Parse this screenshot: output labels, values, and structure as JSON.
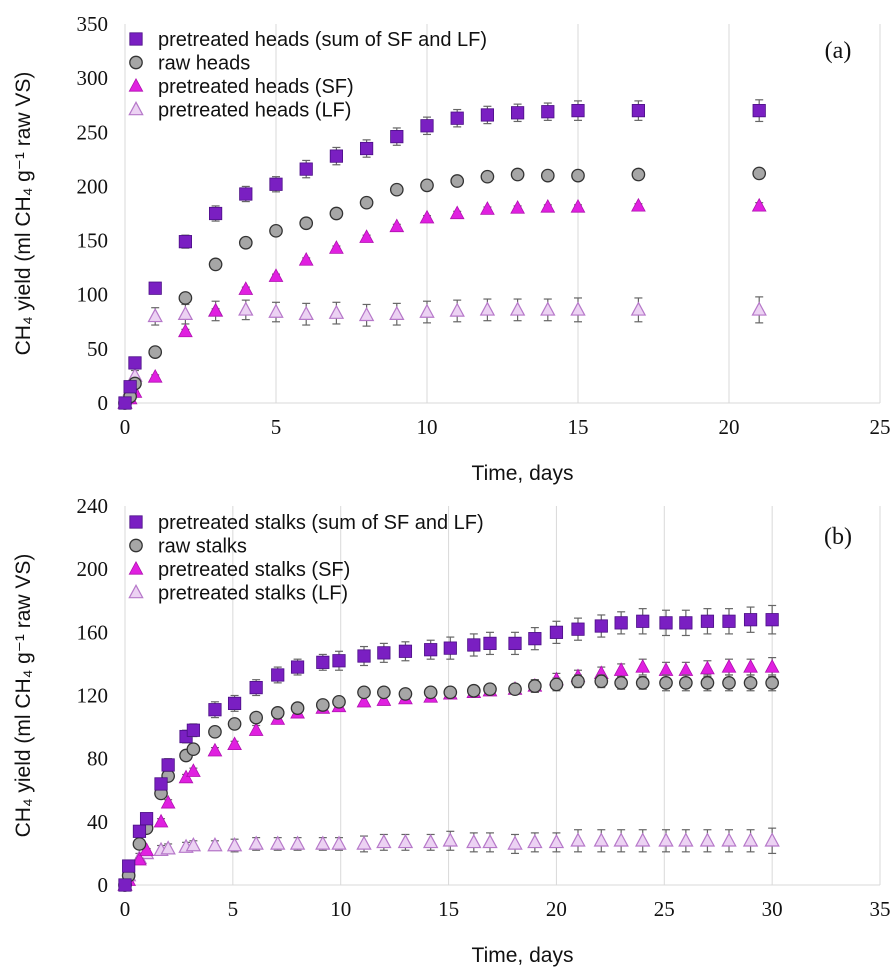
{
  "chart_data": [
    {
      "type": "scatter",
      "panel_label": "(a)",
      "xlabel": "Time, days",
      "ylabel": "CH₄ yield (ml CH₄ g⁻¹ raw VS)",
      "xlim": [
        0,
        25
      ],
      "ylim": [
        0,
        350
      ],
      "xticks": [
        "0",
        "5",
        "10",
        "15",
        "20",
        "25"
      ],
      "yticks": [
        "0",
        "50",
        "100",
        "150",
        "200",
        "250",
        "300",
        "350"
      ],
      "grid": "vertical",
      "legend_position": "top-left",
      "series": [
        {
          "name": "pretreated heads (sum of SF and LF)",
          "marker": "square",
          "color": "#7a1fc2",
          "x": [
            0,
            0.17,
            0.33,
            1,
            2,
            3,
            4,
            5,
            6,
            7,
            8,
            9,
            10,
            11,
            12,
            13,
            14,
            15,
            17,
            21
          ],
          "y": [
            0,
            15,
            37,
            106,
            149,
            175,
            193,
            202,
            216,
            228,
            235,
            246,
            256,
            263,
            266,
            268,
            269,
            270,
            270,
            270
          ],
          "err": [
            0,
            3,
            3,
            5,
            6,
            7,
            7,
            7,
            8,
            8,
            8,
            8,
            8,
            8,
            8,
            8,
            8,
            9,
            9,
            10
          ]
        },
        {
          "name": "raw heads",
          "marker": "circle",
          "color": "#a6a6a6",
          "x": [
            0,
            0.17,
            0.33,
            1,
            2,
            3,
            4,
            5,
            6,
            7,
            8,
            9,
            10,
            11,
            12,
            13,
            14,
            15,
            17,
            21
          ],
          "y": [
            0,
            6,
            18,
            47,
            97,
            128,
            148,
            159,
            166,
            175,
            185,
            197,
            201,
            205,
            209,
            211,
            210,
            210,
            211,
            212
          ],
          "err": [
            0,
            1,
            2,
            2,
            2,
            2,
            2,
            2,
            2,
            2,
            2,
            2,
            2,
            2,
            2,
            2,
            2,
            2,
            2,
            2
          ]
        },
        {
          "name": "pretreated heads (SF)",
          "marker": "triangle",
          "color": "#e020e0",
          "x": [
            0,
            0.17,
            0.33,
            1,
            2,
            3,
            4,
            5,
            6,
            7,
            8,
            9,
            10,
            11,
            12,
            13,
            14,
            15,
            17,
            21
          ],
          "y": [
            0,
            4,
            10,
            24,
            66,
            85,
            105,
            117,
            132,
            143,
            153,
            163,
            171,
            175,
            179,
            180,
            181,
            181,
            182,
            182
          ],
          "err": [
            0,
            1,
            1,
            2,
            2,
            2,
            2,
            2,
            2,
            2,
            2,
            2,
            2,
            2,
            2,
            2,
            2,
            2,
            2,
            3
          ]
        },
        {
          "name": "pretreated heads (LF)",
          "marker": "triangle-open",
          "color": "#d8a6e6",
          "x": [
            0,
            0.17,
            0.33,
            1,
            2,
            3,
            4,
            5,
            6,
            7,
            8,
            9,
            10,
            11,
            12,
            13,
            14,
            15,
            17,
            21
          ],
          "y": [
            0,
            12,
            25,
            80,
            82,
            85,
            86,
            84,
            82,
            83,
            81,
            82,
            84,
            85,
            86,
            86,
            86,
            86,
            86,
            86
          ],
          "err": [
            0,
            4,
            5,
            8,
            9,
            9,
            9,
            9,
            10,
            10,
            10,
            10,
            10,
            10,
            10,
            10,
            10,
            11,
            11,
            12
          ]
        }
      ]
    },
    {
      "type": "scatter",
      "panel_label": "(b)",
      "xlabel": "Time, days",
      "ylabel": "CH₄ yield (ml CH₄ g⁻¹ raw VS)",
      "xlim": [
        0,
        35
      ],
      "ylim": [
        0,
        240
      ],
      "xticks": [
        "0",
        "5",
        "10",
        "15",
        "20",
        "25",
        "30",
        "35"
      ],
      "yticks": [
        "0",
        "40",
        "80",
        "120",
        "160",
        "200",
        "240"
      ],
      "grid": "vertical",
      "legend_position": "top-left",
      "series": [
        {
          "name": "pretreated stalks (sum of SF and LF)",
          "marker": "square",
          "color": "#7a1fc2",
          "x": [
            0,
            0.17,
            0.67,
            1,
            1.67,
            2,
            2.83,
            3.17,
            4.17,
            5.08,
            6.08,
            7.08,
            8,
            9.17,
            9.92,
            11.08,
            12,
            13,
            14.17,
            15.08,
            16.17,
            16.92,
            18.08,
            19,
            20,
            21,
            22.08,
            23,
            24,
            25.08,
            26,
            27,
            28,
            29,
            30
          ],
          "y": [
            0,
            12,
            34,
            42,
            64,
            76,
            94,
            98,
            111,
            115,
            125,
            133,
            138,
            141,
            142,
            145,
            147,
            148,
            149,
            150,
            152,
            153,
            153,
            156,
            160,
            162,
            164,
            166,
            167,
            166,
            166,
            167,
            167,
            168,
            168
          ],
          "err": [
            0,
            2,
            3,
            3,
            3,
            4,
            4,
            4,
            5,
            5,
            5,
            5,
            5,
            5,
            6,
            6,
            6,
            6,
            6,
            7,
            7,
            7,
            7,
            7,
            7,
            7,
            7,
            7,
            8,
            8,
            8,
            8,
            8,
            8,
            9
          ]
        },
        {
          "name": "raw stalks",
          "marker": "circle",
          "color": "#a6a6a6",
          "x": [
            0,
            0.17,
            0.67,
            1,
            1.67,
            2,
            2.83,
            3.17,
            4.17,
            5.08,
            6.08,
            7.08,
            8,
            9.17,
            9.92,
            11.08,
            12,
            13,
            14.17,
            15.08,
            16.17,
            16.92,
            18.08,
            19,
            20,
            21,
            22.08,
            23,
            24,
            25.08,
            26,
            27,
            28,
            29,
            30
          ],
          "y": [
            0,
            6,
            26,
            36,
            58,
            69,
            82,
            86,
            97,
            102,
            106,
            109,
            112,
            114,
            116,
            122,
            122,
            121,
            122,
            122,
            123,
            124,
            124,
            126,
            127,
            129,
            129,
            128,
            128,
            128,
            128,
            128,
            128,
            128,
            128
          ],
          "err": [
            0,
            1,
            2,
            2,
            2,
            2,
            2,
            2,
            2,
            3,
            3,
            3,
            3,
            3,
            3,
            3,
            3,
            3,
            3,
            3,
            3,
            3,
            3,
            4,
            4,
            4,
            4,
            4,
            4,
            5,
            5,
            5,
            5,
            5,
            5
          ]
        },
        {
          "name": "pretreated stalks (SF)",
          "marker": "triangle",
          "color": "#e020e0",
          "x": [
            0,
            0.17,
            0.67,
            1,
            1.67,
            2,
            2.83,
            3.17,
            4.17,
            5.08,
            6.08,
            7.08,
            8,
            9.17,
            9.92,
            11.08,
            12,
            13,
            14.17,
            15.08,
            16.17,
            16.92,
            18.08,
            19,
            20,
            21,
            22.08,
            23,
            24,
            25.08,
            26,
            27,
            28,
            29,
            30
          ],
          "y": [
            0,
            3,
            16,
            22,
            40,
            52,
            68,
            72,
            85,
            89,
            98,
            105,
            109,
            112,
            113,
            116,
            117,
            118,
            119,
            121,
            122,
            123,
            124,
            126,
            130,
            132,
            134,
            136,
            138,
            136,
            136,
            137,
            138,
            138,
            138
          ],
          "err": [
            0,
            1,
            1,
            1,
            2,
            2,
            2,
            2,
            2,
            2,
            3,
            3,
            3,
            3,
            3,
            3,
            3,
            3,
            3,
            3,
            3,
            3,
            3,
            4,
            4,
            4,
            4,
            4,
            5,
            5,
            5,
            5,
            5,
            5,
            6
          ]
        },
        {
          "name": "pretreated stalks (LF)",
          "marker": "triangle-open",
          "color": "#d8a6e6",
          "x": [
            0,
            0.17,
            0.67,
            1,
            1.67,
            2,
            2.83,
            3.17,
            4.17,
            5.08,
            6.08,
            7.08,
            8,
            9.17,
            9.92,
            11.08,
            12,
            13,
            14.17,
            15.08,
            16.17,
            16.92,
            18.08,
            19,
            20,
            21,
            22.08,
            23,
            24,
            25.08,
            26,
            27,
            28,
            29,
            30
          ],
          "y": [
            0,
            6,
            17,
            20,
            22,
            23,
            24,
            25,
            25,
            25,
            26,
            26,
            26,
            26,
            26,
            26,
            27,
            27,
            27,
            28,
            27,
            27,
            26,
            27,
            27,
            28,
            28,
            28,
            28,
            28,
            28,
            28,
            28,
            28,
            28
          ],
          "err": [
            0,
            2,
            3,
            3,
            3,
            3,
            3,
            3,
            3,
            4,
            4,
            4,
            4,
            4,
            4,
            5,
            5,
            5,
            5,
            6,
            6,
            6,
            6,
            6,
            6,
            7,
            7,
            7,
            7,
            7,
            7,
            7,
            7,
            7,
            8
          ]
        }
      ]
    }
  ]
}
